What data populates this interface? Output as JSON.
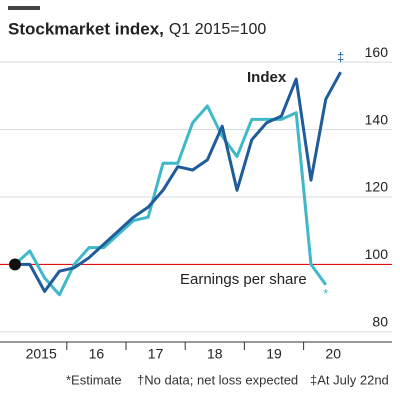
{
  "chart_data": {
    "type": "line",
    "title": "Stockmarket index,",
    "subtitle": "Q1 2015=100",
    "categories": [
      null,
      null,
      null,
      null,
      null,
      null,
      null,
      null,
      null,
      null,
      null,
      null,
      null,
      null,
      null,
      null,
      null,
      null,
      null,
      null,
      null,
      null,
      null
    ],
    "year_labels": [
      "2015",
      "16",
      "17",
      "18",
      "19",
      "20"
    ],
    "series": [
      {
        "name": "Index",
        "color": "#1f5c99",
        "values": [
          100,
          100,
          92,
          98,
          99,
          102,
          106,
          110,
          114,
          117,
          122,
          129,
          128,
          131,
          141,
          122,
          137,
          142,
          144,
          155,
          125,
          149,
          157
        ]
      },
      {
        "name": "Earnings per share",
        "color": "#3fb8c9",
        "values": [
          100,
          104,
          96,
          91,
          100,
          105,
          105,
          109,
          113,
          114,
          130,
          130,
          142,
          147,
          138,
          132,
          143,
          143,
          143,
          145,
          100,
          94,
          null
        ]
      }
    ],
    "series_marks": [
      "‡",
      "*"
    ],
    "reference_line": 100,
    "ylim": [
      77,
      163
    ],
    "yticks": [
      80,
      100,
      120,
      140,
      160
    ],
    "grid": true,
    "notes": [
      "*Estimate",
      "†No data; net loss expected",
      "‡At July 22nd"
    ]
  }
}
